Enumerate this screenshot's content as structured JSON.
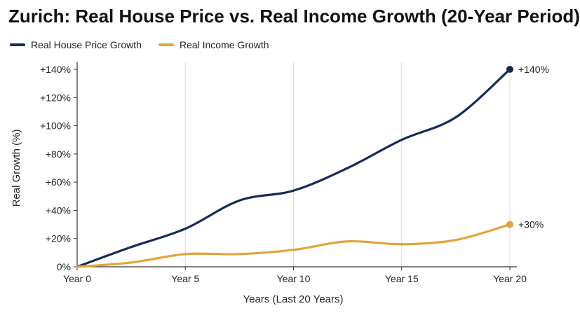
{
  "chart_data": {
    "type": "line",
    "title": "Zurich: Real House Price vs. Real Income Growth (20-Year Period)",
    "xlabel": "Years (Last 20 Years)",
    "ylabel": "Real Growth (%)",
    "x_ticks": [
      {
        "x": 0,
        "label": "Year 0"
      },
      {
        "x": 5,
        "label": "Year 5"
      },
      {
        "x": 10,
        "label": "Year 10"
      },
      {
        "x": 15,
        "label": "Year 15"
      },
      {
        "x": 20,
        "label": "Year 20"
      }
    ],
    "y_ticks": [
      {
        "y": 0,
        "label": "0%"
      },
      {
        "y": 20,
        "label": "+20%"
      },
      {
        "y": 40,
        "label": "+40%"
      },
      {
        "y": 60,
        "label": "+60%"
      },
      {
        "y": 80,
        "label": "+80%"
      },
      {
        "y": 100,
        "label": "+100%"
      },
      {
        "y": 120,
        "label": "+120%"
      },
      {
        "y": 140,
        "label": "+140%"
      }
    ],
    "xlim": [
      0,
      20
    ],
    "ylim": [
      0,
      140
    ],
    "grid": "vertical",
    "legend_position": "top-left",
    "series": [
      {
        "name": "Real House Price Growth",
        "color": "#172a57",
        "x": [
          0,
          2.5,
          5,
          7.5,
          10,
          12.5,
          15,
          17.5,
          20
        ],
        "y": [
          0,
          14,
          27,
          47,
          54,
          70,
          90,
          106,
          140
        ],
        "end_label": "+140%"
      },
      {
        "name": "Real Income Growth",
        "color": "#e0a43a",
        "x": [
          0,
          2.5,
          5,
          7.5,
          10,
          12.5,
          15,
          17.5,
          20
        ],
        "y": [
          0,
          3,
          9,
          9,
          12,
          18,
          16,
          19,
          30
        ],
        "end_label": "+30%"
      }
    ]
  }
}
